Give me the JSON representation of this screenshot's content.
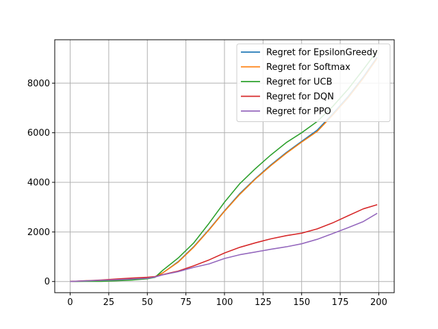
{
  "chart_data": {
    "type": "line",
    "title": "",
    "xlabel": "",
    "ylabel": "",
    "xlim": [
      -10,
      210
    ],
    "ylim": [
      -450,
      9750
    ],
    "xticks": [
      0,
      25,
      50,
      75,
      100,
      125,
      150,
      175,
      200
    ],
    "yticks": [
      0,
      2000,
      4000,
      6000,
      8000
    ],
    "grid": true,
    "legend_position": "top-right",
    "x": [
      0,
      10,
      20,
      30,
      40,
      50,
      55,
      60,
      70,
      80,
      90,
      100,
      110,
      120,
      130,
      140,
      150,
      160,
      170,
      180,
      190,
      199
    ],
    "series": [
      {
        "name": "Regret for EpsilonGreedy",
        "color": "#1f77b4",
        "values": [
          0,
          20,
          40,
          60,
          90,
          140,
          190,
          350,
          800,
          1400,
          2100,
          2850,
          3550,
          4150,
          4700,
          5200,
          5650,
          6100,
          6750,
          7450,
          8250,
          9050
        ]
      },
      {
        "name": "Regret for Softmax",
        "color": "#ff7f0e",
        "values": [
          0,
          20,
          40,
          60,
          90,
          140,
          190,
          350,
          780,
          1380,
          2080,
          2830,
          3520,
          4130,
          4670,
          5170,
          5620,
          6050,
          6700,
          7400,
          8200,
          9000
        ]
      },
      {
        "name": "Regret for UCB",
        "color": "#2ca02c",
        "values": [
          0,
          5,
          10,
          30,
          60,
          110,
          170,
          450,
          950,
          1550,
          2350,
          3200,
          3950,
          4550,
          5100,
          5600,
          6000,
          6450,
          7050,
          7750,
          8550,
          9300
        ]
      },
      {
        "name": "Regret for DQN",
        "color": "#d62728",
        "values": [
          0,
          30,
          60,
          100,
          140,
          170,
          200,
          280,
          420,
          630,
          870,
          1150,
          1380,
          1560,
          1720,
          1850,
          1950,
          2120,
          2360,
          2650,
          2930,
          3100
        ]
      },
      {
        "name": "Regret for PPO",
        "color": "#9467bd",
        "values": [
          0,
          25,
          50,
          70,
          100,
          130,
          180,
          270,
          400,
          570,
          710,
          930,
          1080,
          1190,
          1300,
          1400,
          1520,
          1700,
          1930,
          2170,
          2420,
          2750
        ]
      }
    ]
  }
}
